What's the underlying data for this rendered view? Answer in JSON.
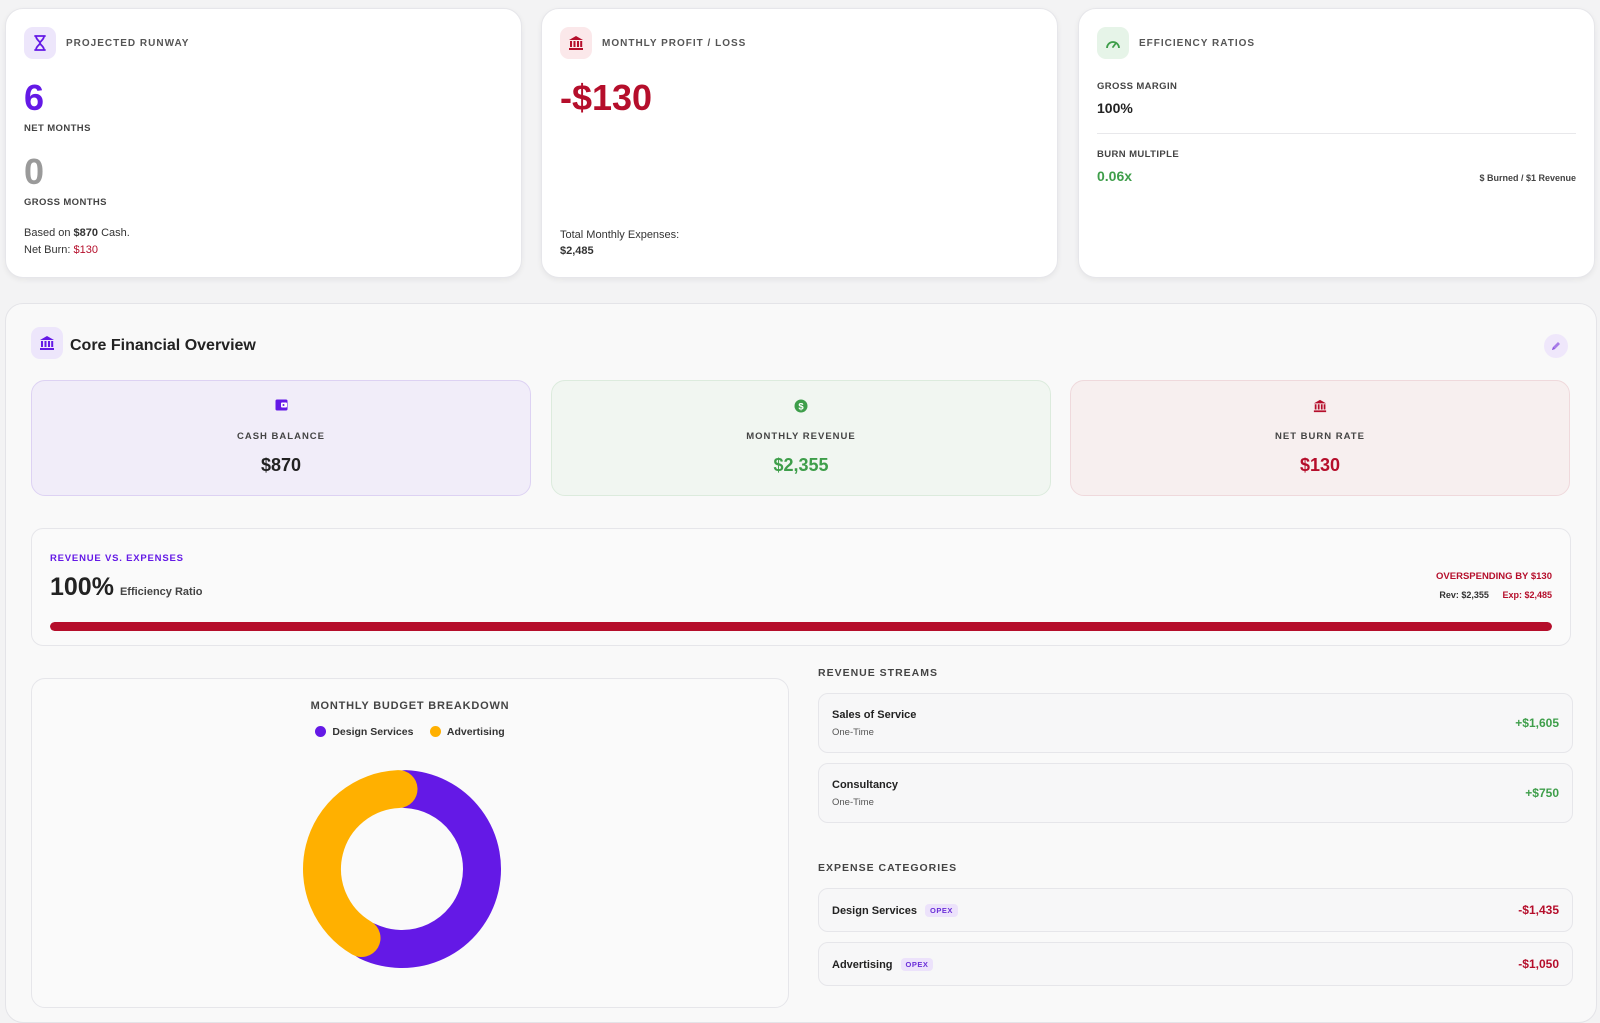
{
  "colors": {
    "purple": "#6419e6",
    "red": "#b50e2b",
    "green": "#3e9e4a",
    "orange": "#ffb000",
    "gray": "#9a9a9a"
  },
  "runway": {
    "title": "PROJECTED RUNWAY",
    "net_value": "6",
    "net_label": "NET MONTHS",
    "gross_value": "0",
    "gross_label": "GROSS MONTHS",
    "based_prefix": "Based on ",
    "based_cash": "$870",
    "based_suffix": " Cash.",
    "burn_prefix": "Net Burn: ",
    "burn_value": "$130",
    "icon": "hourglass-icon"
  },
  "profit": {
    "title": "MONTHLY PROFIT / LOSS",
    "value": "-$130",
    "expenses_label": "Total Monthly Expenses:",
    "expenses_value": "$2,485",
    "icon": "bank-icon"
  },
  "efficiency": {
    "title": "EFFICIENCY RATIOS",
    "gross_margin_label": "GROSS MARGIN",
    "gross_margin_value": "100%",
    "burn_multiple_label": "BURN MULTIPLE",
    "burn_multiple_value": "0.06x",
    "burn_multiple_note": "$ Burned / $1 Revenue",
    "icon": "gauge-icon"
  },
  "overview": {
    "title": "Core Financial Overview",
    "icon": "bank-icon",
    "edit_icon": "pencil-icon",
    "cash": {
      "label": "CASH BALANCE",
      "value": "$870",
      "icon": "wallet-icon"
    },
    "revenue": {
      "label": "MONTHLY REVENUE",
      "value": "$2,355",
      "icon": "dollar-icon"
    },
    "burn": {
      "label": "NET BURN RATE",
      "value": "$130",
      "icon": "bank-icon"
    }
  },
  "rev_vs_exp": {
    "title": "REVENUE VS. EXPENSES",
    "ratio_value": "100%",
    "ratio_label": "Efficiency Ratio",
    "status": "OVERSPENDING BY $130",
    "rev": "Rev: $2,355",
    "exp": "Exp: $2,485",
    "fill_fraction": 1.0
  },
  "budget": {
    "title": "MONTHLY BUDGET BREAKDOWN",
    "legend": [
      {
        "label": "Design Services",
        "color": "#6419e6"
      },
      {
        "label": "Advertising",
        "color": "#ffb000"
      }
    ]
  },
  "chart_data": {
    "type": "pie",
    "title": "MONTHLY BUDGET BREAKDOWN",
    "categories": [
      "Design Services",
      "Advertising"
    ],
    "values": [
      1435,
      1050
    ],
    "colors": [
      "#6419e6",
      "#ffb000"
    ],
    "donut": true,
    "legend": "top"
  },
  "revenue_streams": {
    "title": "REVENUE STREAMS",
    "items": [
      {
        "name": "Sales of Service",
        "type": "One-Time",
        "amount": "+$1,605"
      },
      {
        "name": "Consultancy",
        "type": "One-Time",
        "amount": "+$750"
      }
    ]
  },
  "expense_categories": {
    "title": "EXPENSE CATEGORIES",
    "items": [
      {
        "name": "Design Services",
        "badge": "OPEX",
        "amount": "-$1,435"
      },
      {
        "name": "Advertising",
        "badge": "OPEX",
        "amount": "-$1,050"
      }
    ]
  }
}
